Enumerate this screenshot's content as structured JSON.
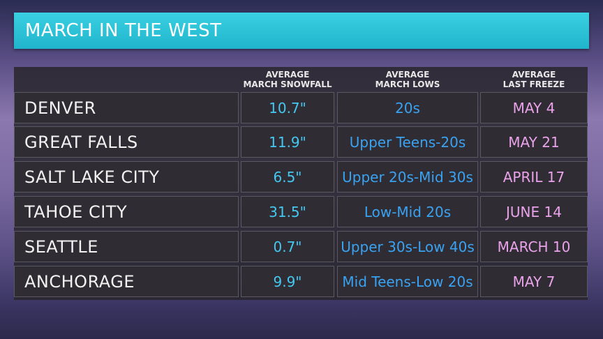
{
  "header": {
    "title": "MARCH IN THE WEST"
  },
  "table": {
    "columns": [
      [
        "AVERAGE",
        "MARCH SNOWFALL"
      ],
      [
        "AVERAGE",
        "MARCH LOWS"
      ],
      [
        "AVERAGE",
        "LAST FREEZE"
      ]
    ],
    "rows": [
      [
        "DENVER",
        "10.7\"",
        "20s",
        "MAY 4"
      ],
      [
        "GREAT FALLS",
        "11.9\"",
        "Upper Teens-20s",
        "MAY 21"
      ],
      [
        "SALT LAKE CITY",
        "6.5\"",
        "Upper 20s-Mid 30s",
        "APRIL 17"
      ],
      [
        "TAHOE CITY",
        "31.5\"",
        "Low-Mid 20s",
        "JUNE 14"
      ],
      [
        "SEATTLE",
        "0.7\"",
        "Upper 30s-Low 40s",
        "MARCH 10"
      ],
      [
        "ANCHORAGE",
        "9.9\"",
        "Mid Teens-Low 20s",
        "MAY 7"
      ]
    ]
  }
}
